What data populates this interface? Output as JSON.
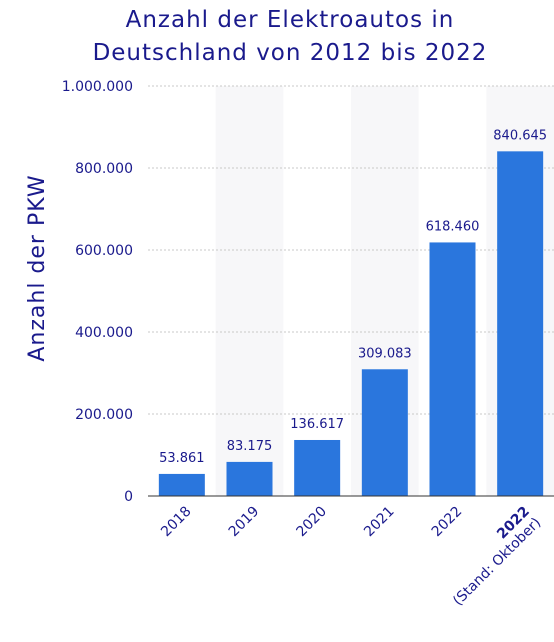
{
  "chart_data": {
    "type": "bar",
    "title_lines": [
      "Anzahl der Elektroautos in",
      "Deutschland von 2012 bis 2022"
    ],
    "xlabel": "",
    "ylabel": "Anzahl der PKW",
    "ylim": [
      0,
      1000000
    ],
    "y_ticks": [
      {
        "value": 0,
        "label": "0"
      },
      {
        "value": 200000,
        "label": "200.000"
      },
      {
        "value": 400000,
        "label": "400.000"
      },
      {
        "value": 600000,
        "label": "600.000"
      },
      {
        "value": 800000,
        "label": "800.000"
      },
      {
        "value": 1000000,
        "label": "1.000.000"
      }
    ],
    "categories": [
      "2018",
      "2019",
      "2020",
      "2021",
      "2022",
      "2022"
    ],
    "category_sublabels": [
      "",
      "",
      "",
      "",
      "",
      "(Stand: Oktober)"
    ],
    "category_bold": [
      false,
      false,
      false,
      false,
      false,
      true
    ],
    "values": [
      53861,
      83175,
      136617,
      309083,
      618460,
      840645
    ],
    "value_labels": [
      "53.861",
      "83.175",
      "136.617",
      "309.083",
      "618.460",
      "840.645"
    ],
    "bar_color": "#2a76dd",
    "band_color": "#f7f7f9",
    "text_color": "#1a1a8c",
    "grid": true
  }
}
